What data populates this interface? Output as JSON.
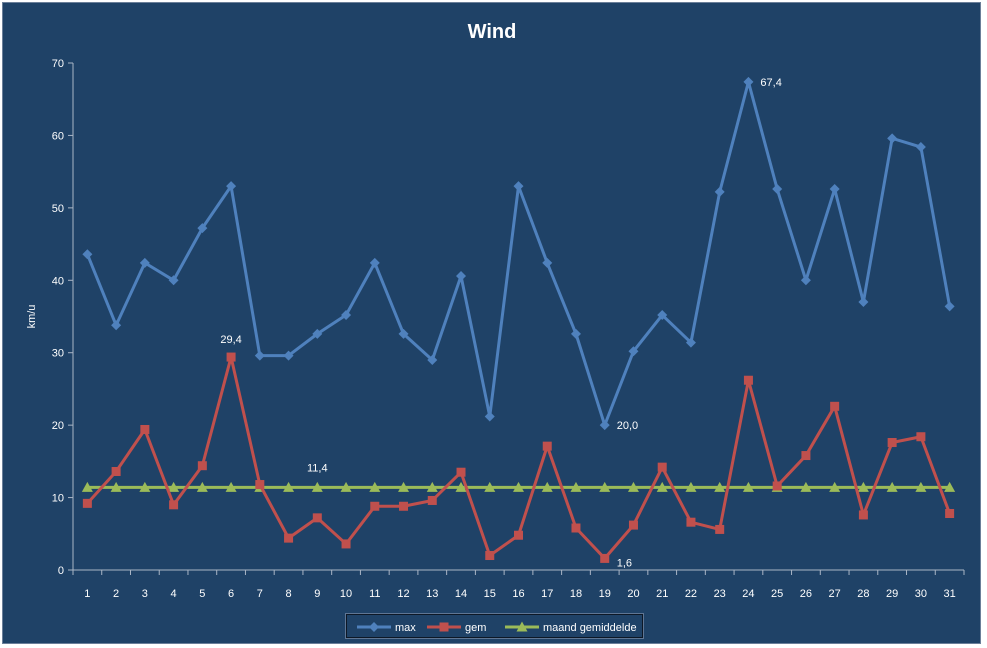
{
  "chart_data": {
    "type": "line",
    "title": "Wind",
    "ylabel": "km/u",
    "xlabel": "",
    "ylim": [
      0,
      70
    ],
    "yticks": [
      0,
      10,
      20,
      30,
      40,
      50,
      60,
      70
    ],
    "categories": [
      "1",
      "2",
      "3",
      "4",
      "5",
      "6",
      "7",
      "8",
      "9",
      "10",
      "11",
      "12",
      "13",
      "14",
      "15",
      "16",
      "17",
      "18",
      "19",
      "20",
      "21",
      "22",
      "23",
      "24",
      "25",
      "26",
      "27",
      "28",
      "29",
      "30",
      "31"
    ],
    "grid": false,
    "legend": "bottom",
    "series": [
      {
        "name": "max",
        "color": "#4f81bd",
        "marker": "diamond",
        "values": [
          43.6,
          33.8,
          42.4,
          40.0,
          47.2,
          53.0,
          29.6,
          29.6,
          32.6,
          35.2,
          42.4,
          32.6,
          29.0,
          40.6,
          21.2,
          53.0,
          42.4,
          32.6,
          20.0,
          30.2,
          35.2,
          31.4,
          52.2,
          67.4,
          52.6,
          40.0,
          52.6,
          37.0,
          59.6,
          58.4,
          36.4
        ]
      },
      {
        "name": "gem",
        "color": "#c0504d",
        "marker": "square",
        "values": [
          9.2,
          13.6,
          19.4,
          9.0,
          14.4,
          29.4,
          11.8,
          4.4,
          7.2,
          3.6,
          8.8,
          8.8,
          9.6,
          13.5,
          2.0,
          4.8,
          17.1,
          5.8,
          1.6,
          6.2,
          14.2,
          6.6,
          5.6,
          26.2,
          11.6,
          15.8,
          22.6,
          7.6,
          17.6,
          18.4,
          7.8
        ]
      },
      {
        "name": "maand gemiddelde",
        "color": "#9bbb59",
        "marker": "triangle",
        "values": [
          11.4,
          11.4,
          11.4,
          11.4,
          11.4,
          11.4,
          11.4,
          11.4,
          11.4,
          11.4,
          11.4,
          11.4,
          11.4,
          11.4,
          11.4,
          11.4,
          11.4,
          11.4,
          11.4,
          11.4,
          11.4,
          11.4,
          11.4,
          11.4,
          11.4,
          11.4,
          11.4,
          11.4,
          11.4,
          11.4,
          11.4
        ]
      }
    ],
    "annotations": [
      {
        "series": 0,
        "index": 23,
        "text": "67,4"
      },
      {
        "series": 0,
        "index": 18,
        "text": "20,0"
      },
      {
        "series": 1,
        "index": 5,
        "text": "29,4"
      },
      {
        "series": 1,
        "index": 18,
        "text": "1,6"
      },
      {
        "series": 2,
        "index": 8,
        "text": "11,4"
      }
    ]
  }
}
